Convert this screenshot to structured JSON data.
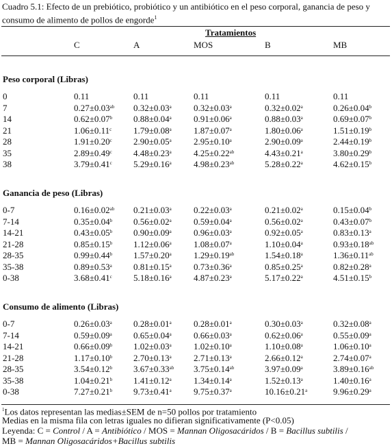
{
  "caption": {
    "text": "Cuadro 5.1: Efecto de un prebiótico, probiótico y un antibiótico en el peso corporal, ganancia de peso y consumo de alimento de pollos de engorde",
    "sup": "1"
  },
  "header": {
    "group_label": "Tratamientos",
    "columns": [
      "C",
      "A",
      "MOS",
      "B",
      "MB"
    ]
  },
  "sections": [
    {
      "title": "Peso corporal  (Libras)",
      "rows": [
        {
          "label": "0",
          "cells": [
            [
              "0.11",
              ""
            ],
            [
              "0.11",
              ""
            ],
            [
              "0.11",
              ""
            ],
            [
              "0.11",
              ""
            ],
            [
              "0.11",
              ""
            ]
          ]
        },
        {
          "label": "7",
          "cells": [
            [
              "0.27±0.03",
              "ab"
            ],
            [
              "0.32±0.03",
              "a"
            ],
            [
              "0.32±0.03",
              "a"
            ],
            [
              "0.32±0.02",
              "a"
            ],
            [
              "0.26±0.04",
              "b"
            ]
          ]
        },
        {
          "label": "14",
          "cells": [
            [
              "0.62±0.07",
              "b"
            ],
            [
              "0.88±0.04",
              "a"
            ],
            [
              "0.91±0.06",
              "a"
            ],
            [
              "0.88±0.03",
              "a"
            ],
            [
              "0.69±0.07",
              "b"
            ]
          ]
        },
        {
          "label": "21",
          "cells": [
            [
              "1.06±0.11",
              "c"
            ],
            [
              "1.79±0.08",
              "a"
            ],
            [
              "1.87±0.07",
              "a"
            ],
            [
              "1.80±0.06",
              "a"
            ],
            [
              "1.51±0.19",
              "b"
            ]
          ]
        },
        {
          "label": "28",
          "cells": [
            [
              "1.91±0.20",
              "c"
            ],
            [
              "2.90±0.05",
              "a"
            ],
            [
              "2.95±0.10",
              "a"
            ],
            [
              "2.90±0.09",
              "a"
            ],
            [
              "2.44±0.19",
              "b"
            ]
          ]
        },
        {
          "label": "35",
          "cells": [
            [
              "2.89±0.49",
              "c"
            ],
            [
              "4.48±0.23",
              "a"
            ],
            [
              "4.25±0.22",
              "ab"
            ],
            [
              "4.43±0.21",
              "a"
            ],
            [
              "3.80±0.29",
              "b"
            ]
          ]
        },
        {
          "label": "38",
          "cells": [
            [
              "3.79±0.41",
              "c"
            ],
            [
              "5.29±0.16",
              "a"
            ],
            [
              "4.98±0.23",
              "ab"
            ],
            [
              "5.28±0.22",
              "a"
            ],
            [
              "4.62±0.15",
              "b"
            ]
          ]
        }
      ]
    },
    {
      "title": "Ganancia de peso (Libras)",
      "rows": [
        {
          "label": "0-7",
          "cells": [
            [
              "0.16±0.02",
              "ab"
            ],
            [
              "0.21±0.03",
              "a"
            ],
            [
              "0.22±0.03",
              "a"
            ],
            [
              "0.21±0.02",
              "a"
            ],
            [
              "0.15±0.04",
              "b"
            ]
          ]
        },
        {
          "label": "7-14",
          "cells": [
            [
              "0.35±0.04",
              "b"
            ],
            [
              "0.56±0.02",
              "a"
            ],
            [
              "0.59±0.04",
              "a"
            ],
            [
              "0.56±0.02",
              "a"
            ],
            [
              "0.43±0.07",
              "b"
            ]
          ]
        },
        {
          "label": "14-21",
          "cells": [
            [
              "0.43±0.05",
              "b"
            ],
            [
              "0.90±0.09",
              "a"
            ],
            [
              "0.96±0.03",
              "a"
            ],
            [
              "0.92±0.05",
              "a"
            ],
            [
              "0.83±0.13",
              "a"
            ]
          ]
        },
        {
          "label": "21-28",
          "cells": [
            [
              "0.85±0.15",
              "b"
            ],
            [
              "1.12±0.06",
              "a"
            ],
            [
              "1.08±0.07",
              "a"
            ],
            [
              "1.10±0.04",
              "a"
            ],
            [
              "0.93±0.18",
              "ab"
            ]
          ]
        },
        {
          "label": "28-35",
          "cells": [
            [
              "0.99±0.44",
              "b"
            ],
            [
              "1.57±0.20",
              "a"
            ],
            [
              "1.29±0.19",
              "ab"
            ],
            [
              "1.54±0.18",
              "a"
            ],
            [
              "1.36±0.11",
              "ab"
            ]
          ]
        },
        {
          "label": "35-38",
          "cells": [
            [
              "0.89±0.53",
              "a"
            ],
            [
              "0.81±0.15",
              "a"
            ],
            [
              "0.73±0.36",
              "a"
            ],
            [
              "0.85±0.25",
              "a"
            ],
            [
              "0.82±0.28",
              "a"
            ]
          ]
        },
        {
          "label": "0-38",
          "cells": [
            [
              "3.68±0.41",
              "c"
            ],
            [
              "5.18±0.16",
              "a"
            ],
            [
              "4.87±0.23",
              "a"
            ],
            [
              "5.17±0.22",
              "a"
            ],
            [
              "4.51±0.15",
              "b"
            ]
          ]
        }
      ]
    },
    {
      "title": "Consumo de alimento (Libras)",
      "rows": [
        {
          "label": "0-7",
          "cells": [
            [
              "0.26±0.03",
              "a"
            ],
            [
              "0.28±0.01",
              "a"
            ],
            [
              "0.28±0.01",
              "a"
            ],
            [
              "0.30±0.03",
              "a"
            ],
            [
              "0.32±0.08",
              "a"
            ]
          ]
        },
        {
          "label": "7-14",
          "cells": [
            [
              "0.59±0.09",
              "a"
            ],
            [
              "0.65±0.04",
              "a"
            ],
            [
              "0.66±0.03",
              "a"
            ],
            [
              "0.62±0.06",
              "a"
            ],
            [
              "0.55±0.09",
              "a"
            ]
          ]
        },
        {
          "label": "14-21",
          "cells": [
            [
              "0.66±0.09",
              "b"
            ],
            [
              "1.02±0.03",
              "a"
            ],
            [
              "1.02±0.10",
              "a"
            ],
            [
              "1.10±0.08",
              "a"
            ],
            [
              "1.06±0.10",
              "a"
            ]
          ]
        },
        {
          "label": "21-28",
          "cells": [
            [
              "1.17±0.10",
              "b"
            ],
            [
              "2.70±0.13",
              "a"
            ],
            [
              "2.71±0.13",
              "a"
            ],
            [
              "2.66±0.12",
              "a"
            ],
            [
              "2.74±0.07",
              "a"
            ]
          ]
        },
        {
          "label": "28-35",
          "cells": [
            [
              "3.54±0.12",
              "b"
            ],
            [
              "3.67±0.33",
              "ab"
            ],
            [
              "3.75±0.14",
              "ab"
            ],
            [
              "3.97±0.09",
              "a"
            ],
            [
              "3.89±0.16",
              "ab"
            ]
          ]
        },
        {
          "label": "35-38",
          "cells": [
            [
              "1.04±0.21",
              "b"
            ],
            [
              "1.41±0.12",
              "a"
            ],
            [
              "1.34±0.14",
              "a"
            ],
            [
              "1.52±0.13",
              "a"
            ],
            [
              "1.40±0.16",
              "a"
            ]
          ]
        },
        {
          "label": "0-38",
          "cells": [
            [
              "7.27±0.21",
              "b"
            ],
            [
              "9.73±0.41",
              "a"
            ],
            [
              "9.75±0.37",
              "a"
            ],
            [
              "10.16±0.21",
              "a"
            ],
            [
              "9.96±0.29",
              "a"
            ]
          ]
        }
      ]
    }
  ],
  "footnotes": {
    "note1_sup": "1",
    "note1": "Los datos representan las medias±SEM de n=50 pollos por tratamiento",
    "note2": "Medias en la misma fila con letras iguales no difieran significativamente (P<0.05)",
    "legend_prefix": "Leyenda: C = ",
    "legend_c": "Control",
    "legend_a_prefix": "  / A = ",
    "legend_a": "Antibiótico",
    "legend_mos_prefix": " / MOS = ",
    "legend_mos": "Mannan Oligosacáridos",
    "legend_b_prefix": " / B = ",
    "legend_b": "Bacillus subtilis",
    "legend_b_suffix": " /",
    "legend_mb_prefix": " MB = ",
    "legend_mb": "Mannan Oligosacáridos+Bacillus subtilis"
  }
}
